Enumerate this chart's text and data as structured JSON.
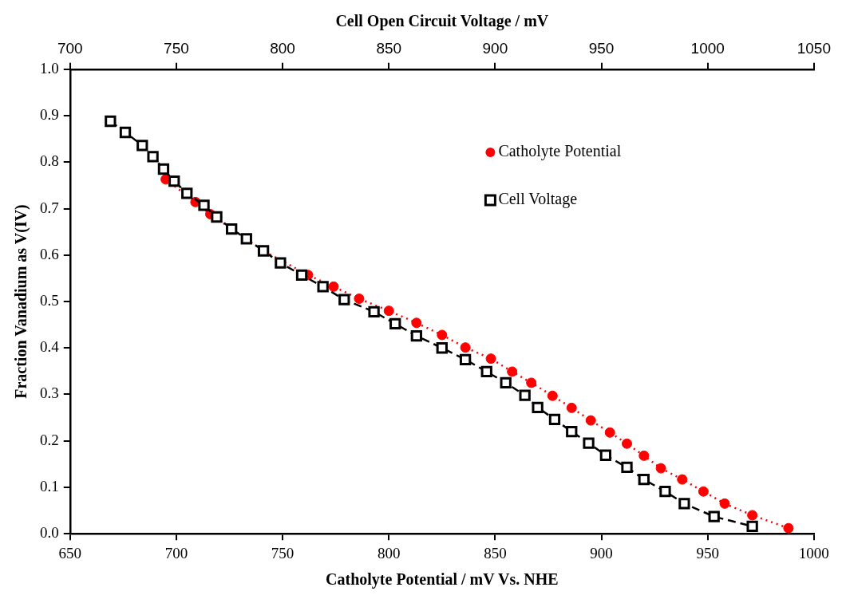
{
  "chart_data": {
    "type": "line",
    "xlabel": "Catholyte Potential / mV Vs. NHE",
    "x2label": "Cell Open Circuit Voltage / mV",
    "ylabel": "Fraction Vanadium as V(IV)",
    "xlim": [
      650,
      1000
    ],
    "xticks": [
      650,
      700,
      750,
      800,
      850,
      900,
      950,
      1000
    ],
    "x2lim": [
      700,
      1050
    ],
    "x2ticks": [
      700,
      750,
      800,
      850,
      900,
      950,
      1000,
      1050
    ],
    "ylim": [
      0,
      1
    ],
    "yticks": [
      {
        "value": 0,
        "label": "0.0"
      },
      0.1,
      0.2,
      0.3,
      0.4,
      0.5,
      0.6,
      0.7,
      0.8,
      0.9,
      {
        "value": 1,
        "label": "1.0"
      }
    ],
    "grid": false,
    "legend": "top right",
    "series": [
      {
        "name": "Catholyte Potential",
        "color": "#ff0000",
        "marker": "circle",
        "line_style": "dotted",
        "x": [
          695,
          703,
          709,
          716,
          725,
          732,
          741,
          751,
          762,
          774,
          786,
          800,
          813,
          825,
          836,
          848,
          858,
          867,
          877,
          886,
          895,
          904,
          912,
          920,
          928,
          938,
          948,
          958,
          971,
          988
        ],
        "values": [
          0.763,
          null,
          0.714,
          0.688,
          null,
          null,
          0.609,
          null,
          0.557,
          0.532,
          0.506,
          0.48,
          0.454,
          0.428,
          0.401,
          0.377,
          0.349,
          0.325,
          0.297,
          0.271,
          0.244,
          0.218,
          0.194,
          0.168,
          0.141,
          0.117,
          0.091,
          0.065,
          0.04,
          0.012
        ]
      },
      {
        "name": "Cell Voltage",
        "color": "#000000",
        "marker": "square",
        "line_style": "dashed",
        "axis": "x2",
        "x": [
          719,
          726,
          734,
          739,
          744,
          749,
          755,
          763,
          769,
          776,
          783,
          791,
          799,
          809,
          819,
          829,
          843,
          853,
          863,
          875,
          886,
          896,
          905,
          914,
          920,
          928,
          936,
          944,
          952,
          962,
          970,
          980,
          989,
          1003,
          1021
        ],
        "values": [
          0.888,
          0.864,
          0.836,
          0.812,
          0.785,
          0.759,
          0.733,
          0.707,
          0.682,
          0.656,
          0.635,
          0.609,
          0.583,
          0.557,
          0.532,
          0.504,
          0.478,
          0.452,
          0.426,
          0.4,
          0.375,
          0.349,
          0.325,
          0.298,
          0.272,
          0.246,
          0.22,
          0.195,
          0.169,
          0.143,
          0.117,
          0.091,
          0.065,
          0.037,
          0.016
        ]
      }
    ]
  }
}
